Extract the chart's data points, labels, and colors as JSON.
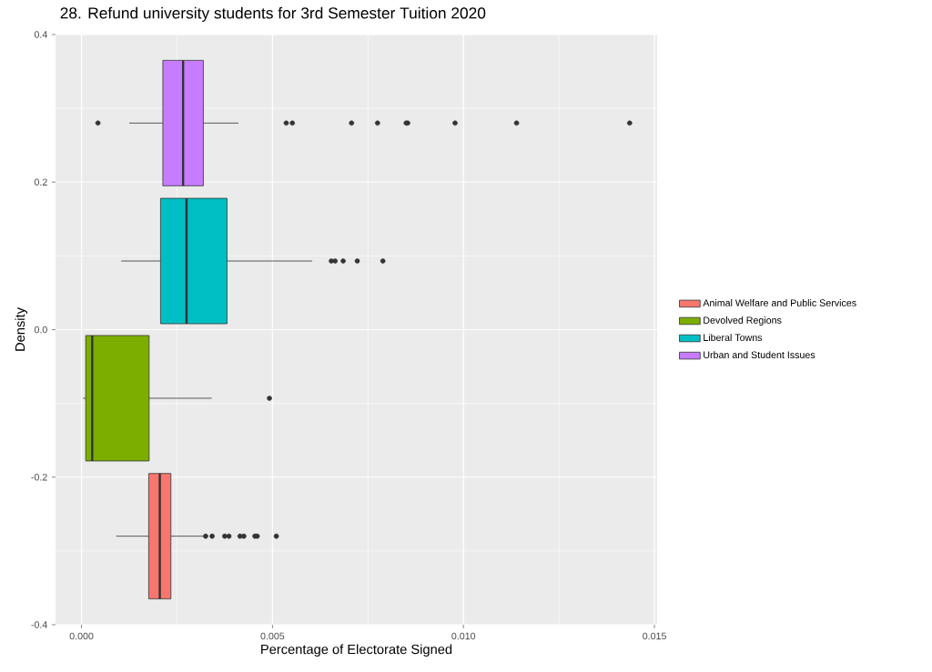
{
  "chart_data": {
    "type": "box",
    "orientation": "horizontal",
    "title": "28. Refund university students for 3rd Semester Tuition 2020",
    "xlabel": "Percentage of Electorate Signed",
    "ylabel": "Density",
    "series": [
      {
        "name": "Animal Welfare and Public Services",
        "color": "#f8766d",
        "x": [
          -0.28
        ],
        "boxes": [
          {
            "low": 0.00091,
            "q1": 0.00176,
            "median": 0.00205,
            "q3": 0.00234,
            "high": 0.00323,
            "outliers": [
              0.00325,
              0.00342,
              0.00375,
              0.00386,
              0.00415,
              0.00425,
              0.00454,
              0.0046,
              0.0051
            ]
          }
        ]
      },
      {
        "name": "Devolved Regions",
        "color": "#7cae00",
        "x": [
          -0.093
        ],
        "boxes": [
          {
            "low": 4e-05,
            "q1": 0.00011,
            "median": 0.00028,
            "q3": 0.00177,
            "high": 0.00341,
            "outliers": [
              0.00492
            ]
          }
        ]
      },
      {
        "name": "Liberal Towns",
        "color": "#00bfc4",
        "x": [
          0.093
        ],
        "boxes": [
          {
            "low": 0.00104,
            "q1": 0.00207,
            "median": 0.00275,
            "q3": 0.00381,
            "high": 0.00604,
            "outliers": [
              0.00654,
              0.00664,
              0.00685,
              0.00722,
              0.00789
            ]
          }
        ]
      },
      {
        "name": "Urban and Student Issues",
        "color": "#c77cff",
        "x": [
          0.28
        ],
        "boxes": [
          {
            "low": 0.00125,
            "q1": 0.00213,
            "median": 0.00266,
            "q3": 0.00319,
            "high": 0.00411,
            "outliers": [
              0.00043,
              0.00536,
              0.00552,
              0.00707,
              0.00775,
              0.0085,
              0.00854,
              0.00978,
              0.01139,
              0.01435
            ]
          }
        ]
      }
    ],
    "xlim": [
      -0.00068,
      0.01507
    ],
    "ylim": [
      -0.4,
      0.4
    ],
    "xticks": [
      {
        "value": 0,
        "label": "0.000"
      },
      {
        "value": 0.005,
        "label": "0.005"
      },
      {
        "value": 0.01,
        "label": "0.010"
      },
      {
        "value": 0.015,
        "label": "0.015"
      }
    ],
    "yticks": [
      {
        "value": -0.4,
        "label": "-0.4"
      },
      {
        "value": -0.2,
        "label": "-0.2"
      },
      {
        "value": 0,
        "label": "0.0"
      },
      {
        "value": 0.2,
        "label": "0.2"
      },
      {
        "value": 0.4,
        "label": "0.4"
      }
    ],
    "grid": true,
    "legend": "right",
    "marker": "circle"
  }
}
